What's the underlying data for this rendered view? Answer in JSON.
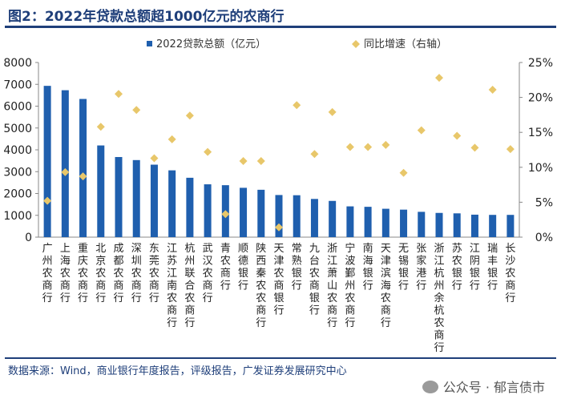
{
  "figure": {
    "title": "图2：2022年贷款总额超1000亿元的农商行",
    "source": "数据来源：Wind，商业银行年度报告，评级报告，广发证券发展研究中心",
    "watermark": "公众号 · 郁言债市"
  },
  "colors": {
    "bar": "#1f5fae",
    "marker": "#e8c76a",
    "text": "#1f3f7a",
    "axis": "#888888"
  },
  "chart_data": {
    "type": "bar",
    "title": "",
    "categories": [
      "广州农商行",
      "上海农商行",
      "重庆农商行",
      "北京农商行",
      "成都农商行",
      "深圳农商行",
      "东莞农商行",
      "江苏江南农商行",
      "杭州联合农商行",
      "武汉农商行",
      "青农商行",
      "顺德银行",
      "陕西秦农农商行",
      "天津农商银行",
      "常熟银行",
      "九台农商银行",
      "浙江萧山农商行",
      "宁波鄞州农商行",
      "南海银行",
      "天津滨海农商行",
      "无锡银行",
      "张家港行",
      "浙江杭州余杭农商行",
      "苏农银行",
      "江阴银行",
      "瑞丰银行",
      "长沙农商行"
    ],
    "series": [
      {
        "name": "2022贷款总额（亿元）",
        "type": "bar",
        "axis": "left",
        "values": [
          6930,
          6730,
          6330,
          4200,
          3670,
          3530,
          3320,
          3060,
          2720,
          2420,
          2380,
          2260,
          2170,
          1930,
          1920,
          1750,
          1660,
          1410,
          1390,
          1300,
          1260,
          1160,
          1110,
          1090,
          1030,
          1020,
          1020
        ]
      },
      {
        "name": "同比增速（右轴）",
        "type": "scatter",
        "axis": "right",
        "values": [
          5.2,
          9.3,
          8.7,
          15.8,
          20.5,
          18.2,
          11.3,
          14.0,
          17.4,
          12.2,
          3.3,
          10.9,
          10.9,
          1.4,
          18.9,
          11.9,
          17.9,
          12.9,
          12.9,
          13.2,
          9.2,
          15.3,
          22.8,
          14.5,
          12.8,
          21.1,
          12.6
        ]
      }
    ],
    "y_left": {
      "min": 0,
      "max": 8000,
      "ticks": [
        "0",
        "1000",
        "2000",
        "3000",
        "4000",
        "5000",
        "6000",
        "7000",
        "8000"
      ]
    },
    "y_right": {
      "min": 0,
      "max": 25,
      "ticks": [
        "0%",
        "5%",
        "10%",
        "15%",
        "20%",
        "25%"
      ]
    },
    "legend": [
      "2022贷款总额（亿元）",
      "同比增速（右轴）"
    ],
    "legend_position": "top",
    "grid": false
  }
}
